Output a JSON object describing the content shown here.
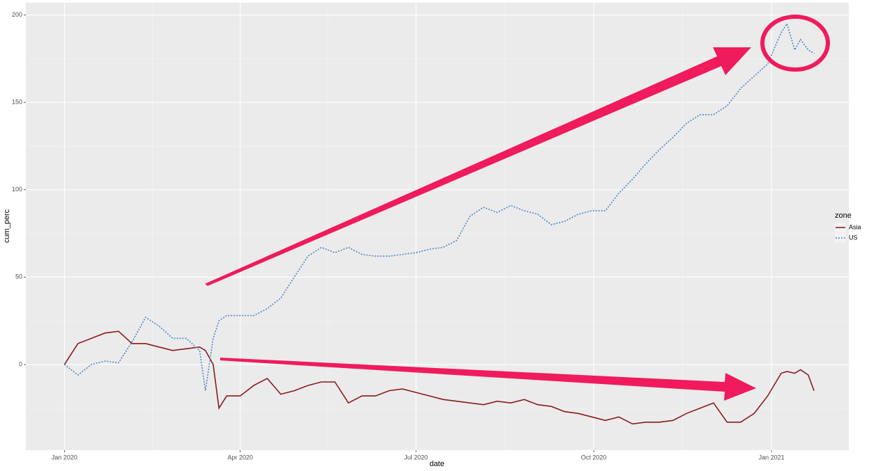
{
  "chart_data": {
    "type": "line",
    "x_label": "date",
    "y_label": "cum_perc",
    "legend_title": "zone",
    "legend": "right",
    "grid": true,
    "xlim": [
      -20,
      406
    ],
    "ylim": [
      -49,
      207
    ],
    "xticks": [
      {
        "value": 0,
        "label": "Jan 2020"
      },
      {
        "value": 91,
        "label": "Apr 2020"
      },
      {
        "value": 182,
        "label": "Jul 2020"
      },
      {
        "value": 274,
        "label": "Oct 2020"
      },
      {
        "value": 366,
        "label": "Jan 2021"
      }
    ],
    "yticks": [
      0,
      50,
      100,
      150,
      200
    ],
    "x": [
      0,
      7,
      14,
      21,
      28,
      35,
      42,
      49,
      56,
      63,
      70,
      73,
      77,
      80,
      84,
      91,
      98,
      105,
      112,
      119,
      126,
      133,
      140,
      147,
      154,
      161,
      168,
      175,
      182,
      189,
      196,
      203,
      210,
      217,
      224,
      231,
      238,
      245,
      252,
      259,
      266,
      273,
      280,
      287,
      294,
      301,
      308,
      315,
      322,
      329,
      336,
      343,
      350,
      357,
      364,
      371,
      374,
      378,
      381,
      385,
      388
    ],
    "series": [
      {
        "name": "Asia",
        "color": "#8b1a1a",
        "line_style": "solid",
        "values": [
          0,
          12,
          15,
          18,
          19,
          12,
          12,
          10,
          8,
          9,
          10,
          8,
          0,
          -25,
          -18,
          -18,
          -12,
          -8,
          -17,
          -15,
          -12,
          -10,
          -10,
          -22,
          -18,
          -18,
          -15,
          -14,
          -16,
          -18,
          -20,
          -21,
          -22,
          -23,
          -21,
          -22,
          -20,
          -23,
          -24,
          -27,
          -28,
          -30,
          -32,
          -30,
          -34,
          -33,
          -33,
          -32,
          -28,
          -25,
          -22,
          -33,
          -33,
          -28,
          -18,
          -5,
          -4,
          -5,
          -3,
          -6,
          -15
        ]
      },
      {
        "name": "US",
        "color": "#4a86c8",
        "line_style": "dotted",
        "values": [
          0,
          -6,
          0,
          2,
          1,
          13,
          27,
          22,
          15,
          15,
          8,
          -15,
          15,
          25,
          28,
          28,
          28,
          32,
          38,
          50,
          62,
          67,
          64,
          67,
          63,
          62,
          62,
          63,
          64,
          66,
          67,
          71,
          85,
          90,
          87,
          91,
          88,
          86,
          80,
          82,
          86,
          88,
          88,
          98,
          106,
          115,
          123,
          130,
          138,
          143,
          143,
          148,
          158,
          165,
          172,
          190,
          195,
          180,
          186,
          180,
          178
        ]
      }
    ]
  }
}
